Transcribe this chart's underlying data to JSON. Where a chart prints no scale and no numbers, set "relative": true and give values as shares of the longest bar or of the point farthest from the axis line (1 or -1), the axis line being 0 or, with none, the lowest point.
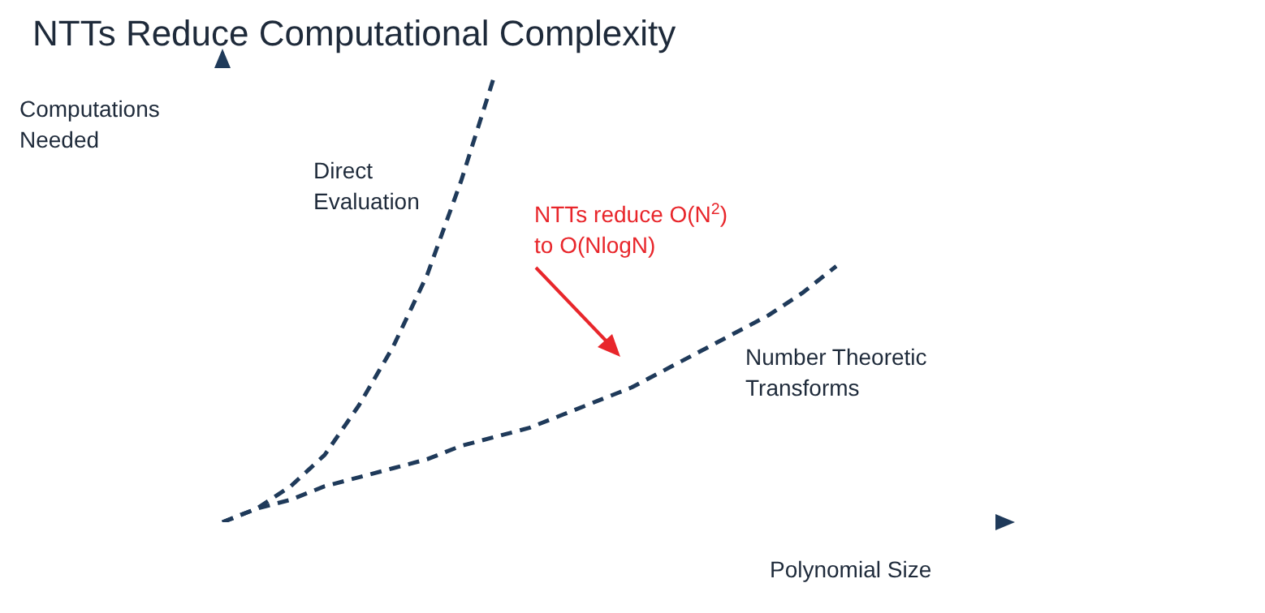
{
  "chart_data": {
    "type": "line",
    "title": "NTTs Reduce Computational Complexity",
    "xlabel": "Polynomial Size",
    "ylabel": "Computations Needed",
    "relative": true,
    "marker": "none",
    "line_style": "dashed",
    "annotations": [
      "NTTs reduce O(N$^{2}$) to O(NlogN)"
    ],
    "categories": [
      null,
      null,
      null,
      null,
      null,
      null,
      null,
      null,
      null,
      null,
      null,
      null,
      null,
      null,
      null,
      null,
      null,
      null,
      null,
      null,
      null,
      null,
      null,
      null
    ],
    "series": [
      {
        "name": "Direct Evaluation",
        "color": "#1f3a5a",
        "values": [
          0,
          0.03,
          0.08,
          0.15,
          0.26,
          0.39,
          0.55,
          0.76,
          1,
          null,
          null,
          null,
          null,
          null,
          null,
          null,
          null,
          null,
          null,
          null,
          null,
          null,
          null,
          null
        ]
      },
      {
        "name": "Number Theoretic Transforms",
        "color": "#1f3a5a",
        "values": [
          0,
          0.03,
          0.05,
          0.08,
          0.1,
          0.12,
          0.14,
          0.17,
          0.19,
          0.21,
          0.24,
          0.27,
          0.3,
          0.34,
          0.38,
          0.42,
          0.46,
          0.51,
          0.57,
          null,
          null,
          null,
          null,
          null
        ]
      }
    ]
  }
}
